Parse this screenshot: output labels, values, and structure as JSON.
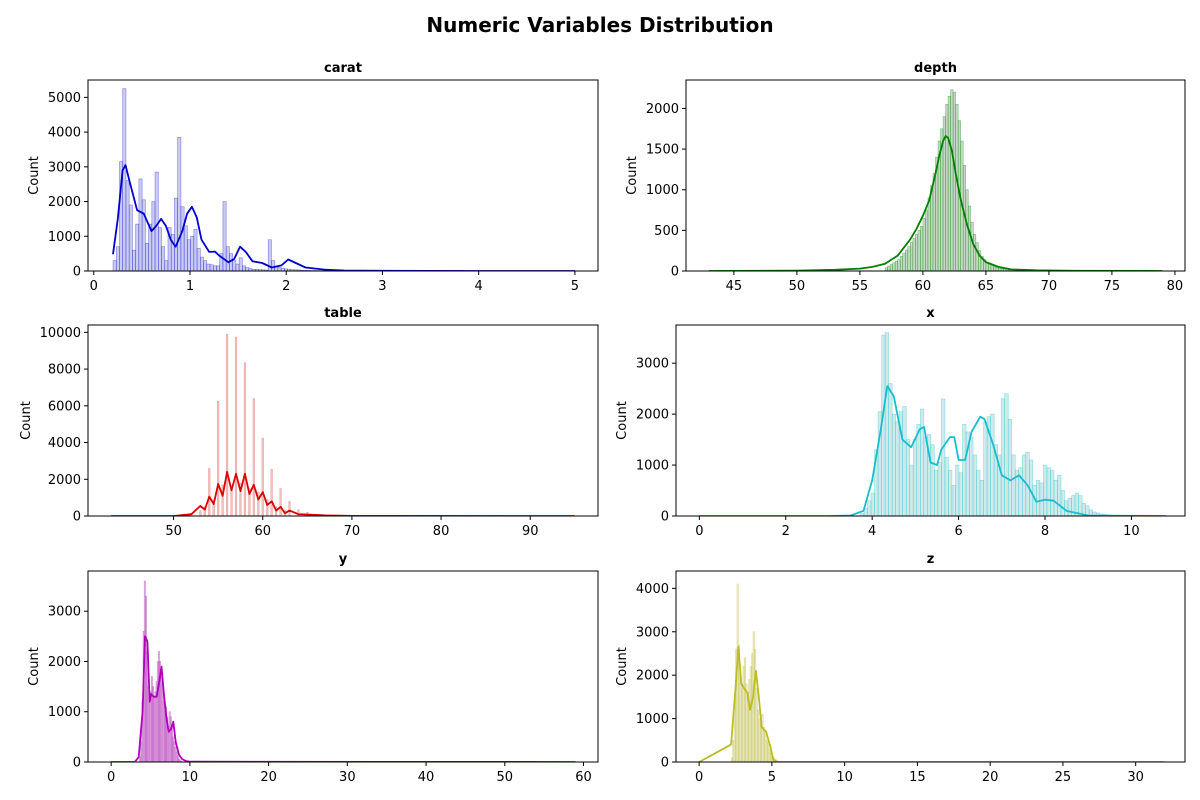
{
  "figure": {
    "title": "Numeric Variables Distribution"
  },
  "chart_data": [
    {
      "type": "histogram",
      "title": "carat",
      "ylabel": "Count",
      "color": "#0000cc",
      "fill": "#9fa0e6",
      "xlim": [
        -0.06,
        5.24
      ],
      "ylim": [
        0,
        5500
      ],
      "xticks": [
        0,
        1,
        2,
        3,
        4,
        5
      ],
      "yticks": [
        0,
        1000,
        2000,
        3000,
        4000,
        5000
      ],
      "bins": {
        "start": 0.2,
        "width": 0.0336,
        "counts": [
          300,
          700,
          3150,
          5250,
          2600,
          1900,
          600,
          1350,
          2650,
          2050,
          800,
          1350,
          2000,
          2850,
          1250,
          700,
          300,
          1250,
          1050,
          2100,
          3850,
          1850,
          1300,
          900,
          1000,
          1200,
          650,
          400,
          300,
          200,
          180,
          150,
          150,
          500,
          2000,
          700,
          500,
          300,
          200,
          380,
          150,
          100,
          70,
          50,
          50,
          40,
          35,
          30,
          900,
          300,
          150,
          100,
          80,
          60,
          50,
          40,
          35,
          30,
          25,
          20,
          20,
          15,
          15,
          12,
          10,
          10,
          8,
          8,
          6,
          6,
          5,
          5,
          4,
          4,
          4,
          3,
          3,
          3,
          2,
          2,
          2,
          2,
          2,
          1,
          1,
          1,
          1,
          1,
          1,
          1,
          1,
          1,
          1,
          1,
          1,
          1,
          1,
          1,
          1,
          1,
          1,
          1,
          1,
          1,
          1,
          1,
          1,
          1,
          1,
          1,
          1,
          1,
          1,
          1,
          1,
          1,
          1,
          1,
          1,
          1,
          1,
          1,
          1,
          1,
          1,
          1,
          1,
          1,
          1,
          1,
          1,
          1,
          1,
          1,
          1,
          1,
          1,
          1,
          1,
          1,
          1
        ]
      },
      "kde": {
        "x": [
          0.2,
          0.25,
          0.3,
          0.33,
          0.38,
          0.45,
          0.52,
          0.6,
          0.65,
          0.7,
          0.75,
          0.8,
          0.85,
          0.92,
          0.97,
          1.02,
          1.07,
          1.12,
          1.2,
          1.26,
          1.3,
          1.4,
          1.46,
          1.52,
          1.58,
          1.65,
          1.75,
          1.85,
          1.95,
          2.02,
          2.1,
          2.2,
          2.4,
          2.6,
          3.0,
          3.5,
          4.0,
          4.5,
          5.0
        ],
        "y": [
          480,
          1500,
          2900,
          3050,
          2500,
          1750,
          1650,
          1150,
          1300,
          1500,
          1300,
          900,
          700,
          1150,
          1650,
          1850,
          1550,
          900,
          550,
          560,
          450,
          250,
          350,
          700,
          550,
          280,
          230,
          100,
          160,
          330,
          230,
          100,
          40,
          15,
          5,
          2,
          1,
          1,
          1
        ]
      }
    },
    {
      "type": "histogram",
      "title": "depth",
      "ylabel": "Count",
      "color": "#008000",
      "fill": "#96b896",
      "xlim": [
        41.2,
        80.8
      ],
      "ylim": [
        0,
        2350
      ],
      "xticks": [
        45,
        50,
        55,
        60,
        65,
        70,
        75,
        80
      ],
      "yticks": [
        0,
        500,
        1000,
        1500,
        2000
      ],
      "bins": {
        "start": 57.0,
        "width": 0.2,
        "counts": [
          40,
          60,
          80,
          100,
          120,
          140,
          180,
          220,
          260,
          300,
          350,
          400,
          450,
          500,
          550,
          650,
          750,
          900,
          1050,
          1200,
          1400,
          1600,
          1750,
          1900,
          2050,
          2150,
          2230,
          2200,
          2050,
          1850,
          1600,
          1300,
          1000,
          800,
          600,
          450,
          350,
          250,
          180,
          140,
          110,
          90,
          70,
          55,
          45,
          35,
          30,
          25,
          20,
          15
        ]
      },
      "kde": {
        "x": [
          43,
          50,
          53,
          55,
          56,
          57,
          58,
          59,
          59.5,
          60,
          60.5,
          61,
          61.3,
          61.6,
          61.8,
          62,
          62.3,
          62.6,
          63,
          63.5,
          64,
          64.5,
          65,
          66,
          67,
          69,
          72,
          79
        ],
        "y": [
          0,
          5,
          15,
          30,
          50,
          90,
          190,
          390,
          520,
          680,
          870,
          1200,
          1420,
          1600,
          1660,
          1640,
          1480,
          1200,
          880,
          570,
          330,
          190,
          110,
          50,
          20,
          8,
          3,
          0
        ]
      }
    },
    {
      "type": "histogram",
      "title": "table",
      "ylabel": "Count",
      "color": "#dd0000",
      "fill": "#e6a8a4",
      "xlim": [
        40.4,
        97.6
      ],
      "ylim": [
        0,
        10400
      ],
      "xticks": [
        50,
        60,
        70,
        80,
        90
      ],
      "yticks": [
        0,
        2000,
        4000,
        6000,
        8000,
        10000
      ],
      "bars": {
        "x": [
          52,
          53,
          53.5,
          54,
          54.5,
          55,
          55.5,
          56,
          56.5,
          57,
          57.5,
          58,
          58.5,
          59,
          59.5,
          60,
          60.5,
          61,
          61.5,
          62,
          62.5,
          63,
          64,
          65,
          66,
          67
        ],
        "counts": [
          150,
          300,
          500,
          2600,
          900,
          6250,
          1700,
          9900,
          1500,
          9750,
          1800,
          8350,
          1500,
          6400,
          1300,
          4250,
          900,
          2550,
          500,
          1500,
          300,
          800,
          350,
          200,
          100,
          60
        ]
      },
      "kde": {
        "x": [
          43,
          50,
          52,
          53,
          53.5,
          54,
          54.5,
          55,
          55.5,
          56,
          56.5,
          57,
          57.5,
          58,
          58.5,
          59,
          59.5,
          60,
          60.5,
          61,
          61.5,
          62,
          62.5,
          63,
          64,
          65,
          67,
          70,
          95
        ],
        "y": [
          0,
          0,
          100,
          550,
          350,
          1050,
          650,
          1750,
          1100,
          2400,
          1400,
          2300,
          1350,
          2300,
          1200,
          1700,
          900,
          1300,
          600,
          800,
          300,
          500,
          150,
          300,
          100,
          80,
          30,
          5,
          0
        ]
      }
    },
    {
      "type": "histogram",
      "title": "x",
      "ylabel": "Count",
      "color": "#17becf",
      "fill": "#a8d8d8",
      "xlim": [
        -0.54,
        11.24
      ],
      "ylim": [
        0,
        3750
      ],
      "xticks": [
        0,
        2,
        4,
        6,
        8,
        10
      ],
      "yticks": [
        0,
        1000,
        2000,
        3000
      ],
      "bins": {
        "start": 3.73,
        "width": 0.0814,
        "counts": [
          50,
          150,
          300,
          450,
          1300,
          2050,
          3550,
          3600,
          2600,
          2000,
          1850,
          2050,
          2150,
          1500,
          1000,
          1500,
          1800,
          2100,
          1550,
          1600,
          1400,
          900,
          1050,
          2300,
          1150,
          900,
          600,
          1000,
          850,
          1800,
          1650,
          1550,
          1200,
          900,
          700,
          1850,
          1950,
          2000,
          1400,
          1200,
          2300,
          2400,
          1900,
          1200,
          900,
          950,
          1200,
          1250,
          1100,
          600,
          700,
          650,
          1000,
          950,
          900,
          700,
          800,
          500,
          300,
          350,
          400,
          450,
          400,
          250,
          200,
          120,
          80,
          60,
          40,
          30,
          20,
          10
        ]
      },
      "kde": {
        "x": [
          0,
          3,
          3.5,
          3.8,
          4.0,
          4.2,
          4.35,
          4.5,
          4.7,
          4.9,
          5.1,
          5.2,
          5.35,
          5.5,
          5.6,
          5.8,
          5.9,
          6.0,
          6.15,
          6.3,
          6.5,
          6.6,
          6.8,
          7.0,
          7.2,
          7.4,
          7.6,
          7.8,
          8.0,
          8.2,
          8.5,
          9,
          10.8
        ],
        "y": [
          0,
          0,
          10,
          100,
          700,
          1700,
          2550,
          2350,
          1500,
          1350,
          1700,
          1750,
          1050,
          1000,
          1300,
          1550,
          1550,
          1100,
          1100,
          1650,
          1950,
          1900,
          1400,
          800,
          700,
          800,
          600,
          280,
          320,
          300,
          100,
          10,
          0
        ]
      }
    },
    {
      "type": "histogram",
      "title": "y",
      "ylabel": "Count",
      "color": "#b000b8",
      "fill": "#cca0cc",
      "xlim": [
        -2.94,
        61.84
      ],
      "ylim": [
        0,
        3800
      ],
      "xticks": [
        0,
        10,
        20,
        30,
        40,
        50,
        60
      ],
      "yticks": [
        0,
        1000,
        2000,
        3000
      ],
      "bins": {
        "start": 3.6,
        "width": 0.15,
        "counts": [
          100,
          400,
          1200,
          2600,
          3600,
          3300,
          2200,
          1500,
          1300,
          1400,
          1700,
          1500,
          1300,
          1400,
          1600,
          2000,
          2200,
          2000,
          1700,
          1600,
          1200,
          1000,
          1100,
          900,
          700,
          1000,
          900,
          700,
          500,
          400,
          300,
          200,
          120,
          60,
          30,
          15
        ]
      },
      "kde": {
        "x": [
          0,
          3,
          3.5,
          4,
          4.3,
          4.6,
          4.9,
          5.1,
          5.4,
          5.8,
          6.2,
          6.4,
          6.7,
          7.0,
          7.3,
          7.6,
          7.9,
          8.2,
          8.6,
          9.0,
          9.5,
          10,
          59
        ],
        "y": [
          0,
          0,
          100,
          1000,
          2500,
          2400,
          1200,
          1350,
          1300,
          1300,
          1700,
          1900,
          1350,
          900,
          600,
          650,
          800,
          400,
          150,
          60,
          20,
          5,
          0
        ]
      }
    },
    {
      "type": "histogram",
      "title": "z",
      "ylabel": "Count",
      "color": "#bcbd22",
      "fill": "#d8d8b0",
      "xlim": [
        -1.59,
        33.39
      ],
      "ylim": [
        0,
        4400
      ],
      "xticks": [
        0,
        5,
        10,
        15,
        20,
        25,
        30
      ],
      "yticks": [
        0,
        1000,
        2000,
        3000,
        4000
      ],
      "bins": {
        "start": 2.2,
        "width": 0.1,
        "counts": [
          100,
          500,
          1500,
          2600,
          4100,
          2700,
          2000,
          1800,
          2200,
          2400,
          1800,
          1600,
          1900,
          2200,
          2500,
          3000,
          2600,
          1700,
          1200,
          1000,
          900,
          1100,
          800,
          700,
          500,
          450,
          300,
          200,
          150,
          100,
          60,
          30
        ]
      },
      "kde": {
        "x": [
          0,
          2.2,
          2.5,
          2.7,
          2.9,
          3.1,
          3.3,
          3.5,
          3.7,
          3.9,
          4.1,
          4.3,
          4.6,
          4.9,
          5.1,
          5.3,
          5.6,
          6,
          32
        ],
        "y": [
          0,
          400,
          1700,
          2650,
          1800,
          1700,
          1600,
          1200,
          1500,
          2100,
          1500,
          800,
          700,
          350,
          50,
          10,
          3,
          0,
          0
        ]
      }
    }
  ]
}
